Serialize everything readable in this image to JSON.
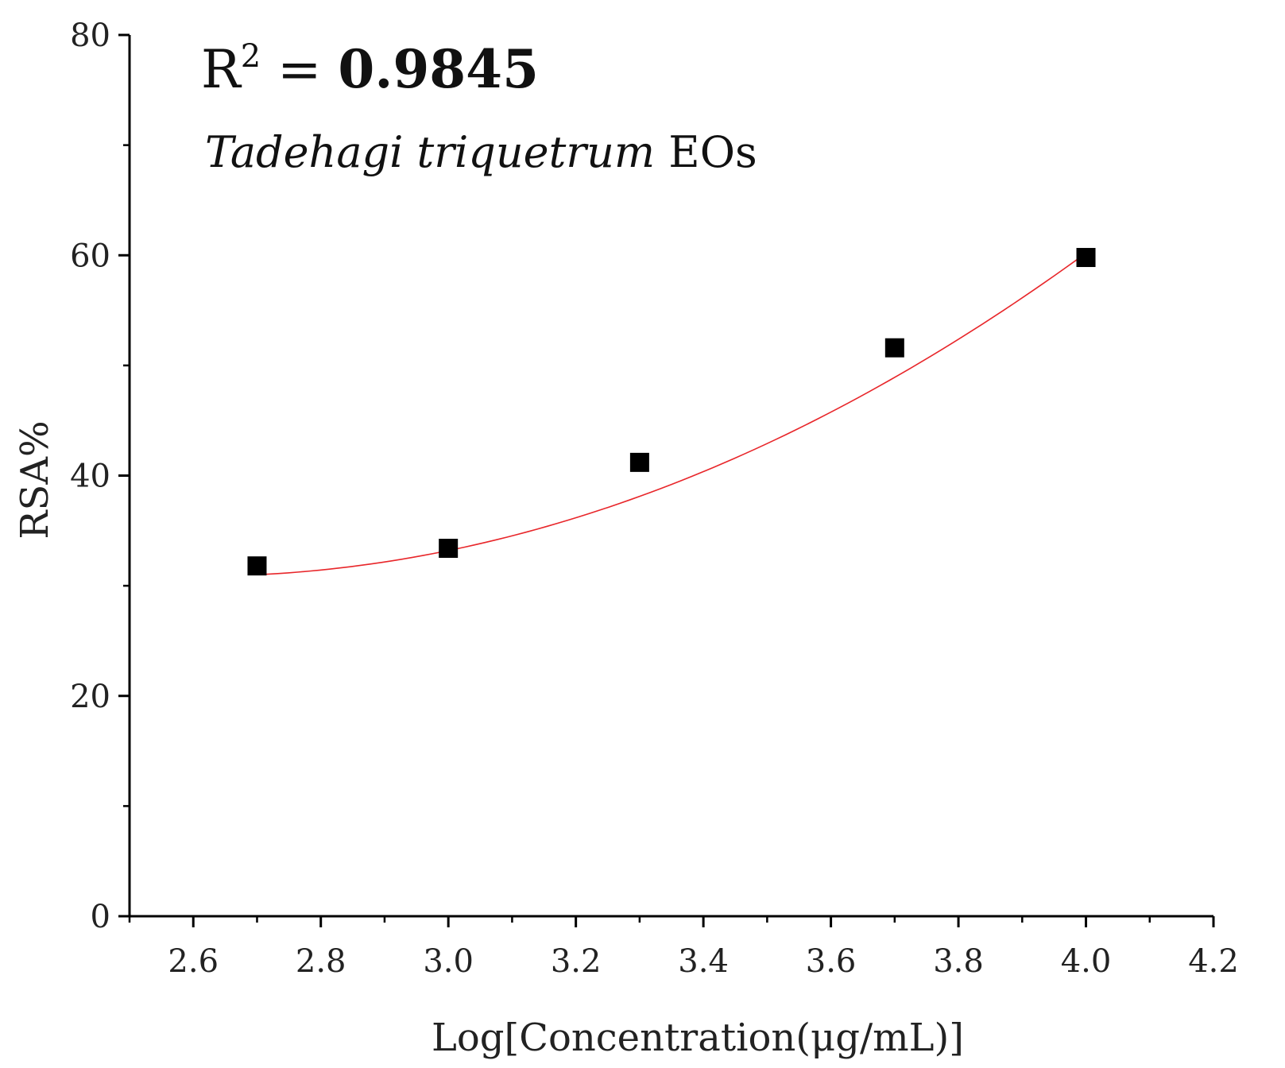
{
  "chart_data": {
    "type": "scatter",
    "xlabel": "Log[Concentration(μg/mL)]",
    "ylabel": "RSA%",
    "xlim": [
      2.5,
      4.2
    ],
    "ylim": [
      0,
      80
    ],
    "x_ticks": [
      2.6,
      2.8,
      3.0,
      3.2,
      3.4,
      3.6,
      3.8,
      4.0,
      4.2
    ],
    "x_tick_labels": [
      "2.6",
      "2.8",
      "3.0",
      "3.2",
      "3.4",
      "3.6",
      "3.8",
      "4.0",
      "4.2"
    ],
    "y_ticks": [
      0,
      20,
      40,
      60,
      80
    ],
    "y_tick_labels": [
      "0",
      "20",
      "40",
      "60",
      "80"
    ],
    "grid": false,
    "series": [
      {
        "marker": "square",
        "color": "#000000",
        "x": [
          2.7,
          3.0,
          3.3,
          3.7,
          4.0
        ],
        "y": [
          31.8,
          33.4,
          41.2,
          51.6,
          59.8
        ]
      }
    ],
    "fit": {
      "color": "#e8262a",
      "x_range": [
        2.7,
        4.0
      ],
      "y_at_x_range": [
        31.0,
        60.2
      ],
      "curve": "quadratic"
    },
    "annotations": {
      "r2_label": "R",
      "r2_sup": "2",
      "r2_eq": " = ",
      "r2_value": "0.9845",
      "species_italic": "Tadehagi triquetrum",
      "species_suffix": " EOs"
    }
  }
}
